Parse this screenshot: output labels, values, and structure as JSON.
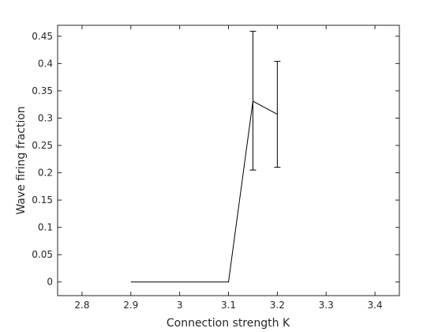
{
  "chart_data": {
    "type": "line",
    "xlabel": "Connection strength K",
    "ylabel": "Wave firing fraction",
    "xlim": [
      2.75,
      3.45
    ],
    "ylim": [
      -0.025,
      0.47
    ],
    "xticks": [
      2.8,
      2.9,
      3.0,
      3.1,
      3.2,
      3.3,
      3.4
    ],
    "xtick_labels": [
      "2.8",
      "2.9",
      "3",
      "3.1",
      "3.2",
      "3.3",
      "3.4"
    ],
    "yticks": [
      0,
      0.05,
      0.1,
      0.15,
      0.2,
      0.25,
      0.3,
      0.35,
      0.4,
      0.45
    ],
    "ytick_labels": [
      "0",
      "0.05",
      "0.1",
      "0.15",
      "0.2",
      "0.25",
      "0.3",
      "0.35",
      "0.4",
      "0.45"
    ],
    "grid": false,
    "series": [
      {
        "x": [
          2.9,
          3.1,
          3.15,
          3.2
        ],
        "y": [
          0,
          0,
          0.331,
          0.307
        ],
        "error_low": [
          null,
          null,
          0.205,
          0.21
        ],
        "error_high": [
          null,
          null,
          0.459,
          0.404
        ],
        "color": "#000000"
      }
    ]
  }
}
